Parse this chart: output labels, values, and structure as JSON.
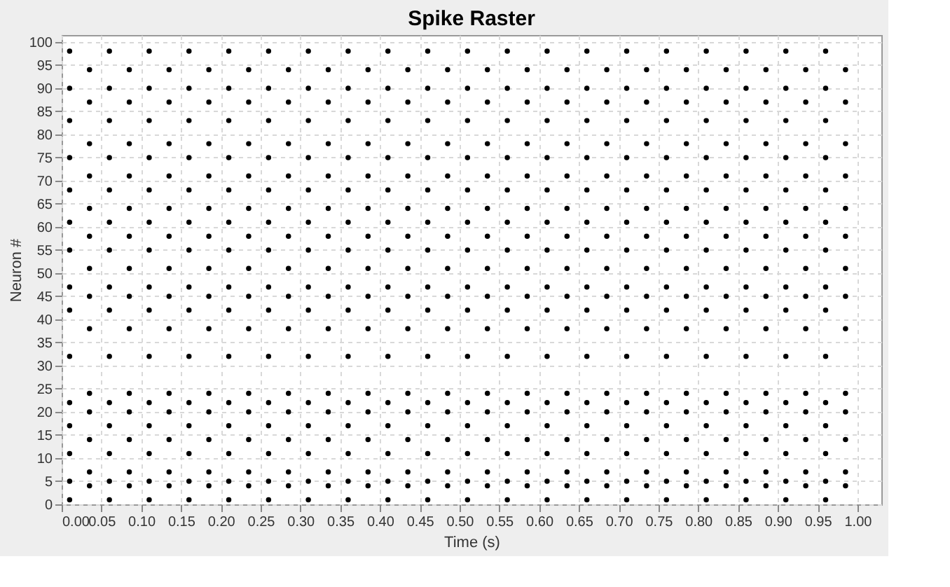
{
  "chart_data": {
    "type": "scatter",
    "title": "Spike Raster",
    "xlabel": "Time (s)",
    "ylabel": "Neuron #",
    "xlim": [
      0,
      1.03
    ],
    "ylim": [
      0,
      101.5
    ],
    "xticks": [
      {
        "value": 0,
        "label": "0.00"
      },
      {
        "value": 0.05,
        "label": "0.05"
      },
      {
        "value": 0.1,
        "label": "0.10"
      },
      {
        "value": 0.15,
        "label": "0.15"
      },
      {
        "value": 0.2,
        "label": "0.20"
      },
      {
        "value": 0.25,
        "label": "0.25"
      },
      {
        "value": 0.3,
        "label": "0.30"
      },
      {
        "value": 0.35,
        "label": "0.35"
      },
      {
        "value": 0.4,
        "label": "0.40"
      },
      {
        "value": 0.45,
        "label": "0.45"
      },
      {
        "value": 0.5,
        "label": "0.50"
      },
      {
        "value": 0.55,
        "label": "0.55"
      },
      {
        "value": 0.6,
        "label": "0.60"
      },
      {
        "value": 0.65,
        "label": "0.65"
      },
      {
        "value": 0.7,
        "label": "0.70"
      },
      {
        "value": 0.75,
        "label": "0.75"
      },
      {
        "value": 0.8,
        "label": "0.80"
      },
      {
        "value": 0.85,
        "label": "0.85"
      },
      {
        "value": 0.9,
        "label": "0.90"
      },
      {
        "value": 0.95,
        "label": "0.95"
      },
      {
        "value": 1,
        "label": "1.00"
      }
    ],
    "yticks": [
      0,
      5,
      10,
      15,
      20,
      25,
      30,
      35,
      40,
      45,
      50,
      55,
      60,
      65,
      70,
      75,
      80,
      85,
      90,
      95,
      100
    ],
    "grid": true,
    "legend": false,
    "marker": "circle",
    "series": [
      {
        "color": "#000000",
        "x": [
          0.01,
          0.06,
          0.11,
          0.16,
          0.21,
          0.26,
          0.31,
          0.36,
          0.41,
          0.46,
          0.51,
          0.56,
          0.61,
          0.66,
          0.71,
          0.76,
          0.81,
          0.86,
          0.91,
          0.96
        ],
        "values": [
          1,
          1,
          1,
          1,
          1,
          1,
          1,
          1,
          1,
          1,
          1,
          1,
          1,
          1,
          1,
          1,
          1,
          1,
          1,
          1
        ]
      },
      {
        "color": "#000000",
        "x": [
          0.035,
          0.085,
          0.135,
          0.185,
          0.235,
          0.285,
          0.335,
          0.385,
          0.435,
          0.485,
          0.535,
          0.585,
          0.635,
          0.685,
          0.735,
          0.785,
          0.835,
          0.885,
          0.935,
          0.985
        ],
        "values": [
          4,
          4,
          4,
          4,
          4,
          4,
          4,
          4,
          4,
          4,
          4,
          4,
          4,
          4,
          4,
          4,
          4,
          4,
          4,
          4
        ]
      },
      {
        "color": "#000000",
        "x": [
          0.01,
          0.06,
          0.11,
          0.16,
          0.21,
          0.26,
          0.31,
          0.36,
          0.41,
          0.46,
          0.51,
          0.56,
          0.61,
          0.66,
          0.71,
          0.76,
          0.81,
          0.86,
          0.91,
          0.96
        ],
        "values": [
          5,
          5,
          5,
          5,
          5,
          5,
          5,
          5,
          5,
          5,
          5,
          5,
          5,
          5,
          5,
          5,
          5,
          5,
          5,
          5
        ]
      },
      {
        "color": "#000000",
        "x": [
          0.035,
          0.085,
          0.135,
          0.185,
          0.235,
          0.285,
          0.335,
          0.385,
          0.435,
          0.485,
          0.535,
          0.585,
          0.635,
          0.685,
          0.735,
          0.785,
          0.835,
          0.885,
          0.935,
          0.985
        ],
        "values": [
          7,
          7,
          7,
          7,
          7,
          7,
          7,
          7,
          7,
          7,
          7,
          7,
          7,
          7,
          7,
          7,
          7,
          7,
          7,
          7
        ]
      },
      {
        "color": "#000000",
        "x": [
          0.01,
          0.06,
          0.11,
          0.16,
          0.21,
          0.26,
          0.31,
          0.36,
          0.41,
          0.46,
          0.51,
          0.56,
          0.61,
          0.66,
          0.71,
          0.76,
          0.81,
          0.86,
          0.91,
          0.96
        ],
        "values": [
          11,
          11,
          11,
          11,
          11,
          11,
          11,
          11,
          11,
          11,
          11,
          11,
          11,
          11,
          11,
          11,
          11,
          11,
          11,
          11
        ]
      },
      {
        "color": "#000000",
        "x": [
          0.035,
          0.085,
          0.135,
          0.185,
          0.235,
          0.285,
          0.335,
          0.385,
          0.435,
          0.485,
          0.535,
          0.585,
          0.635,
          0.685,
          0.735,
          0.785,
          0.835,
          0.885,
          0.935,
          0.985
        ],
        "values": [
          14,
          14,
          14,
          14,
          14,
          14,
          14,
          14,
          14,
          14,
          14,
          14,
          14,
          14,
          14,
          14,
          14,
          14,
          14,
          14
        ]
      },
      {
        "color": "#000000",
        "x": [
          0.01,
          0.06,
          0.11,
          0.16,
          0.21,
          0.26,
          0.31,
          0.36,
          0.41,
          0.46,
          0.51,
          0.56,
          0.61,
          0.66,
          0.71,
          0.76,
          0.81,
          0.86,
          0.91,
          0.96
        ],
        "values": [
          17,
          17,
          17,
          17,
          17,
          17,
          17,
          17,
          17,
          17,
          17,
          17,
          17,
          17,
          17,
          17,
          17,
          17,
          17,
          17
        ]
      },
      {
        "color": "#000000",
        "x": [
          0.035,
          0.085,
          0.135,
          0.185,
          0.235,
          0.285,
          0.335,
          0.385,
          0.435,
          0.485,
          0.535,
          0.585,
          0.635,
          0.685,
          0.735,
          0.785,
          0.835,
          0.885,
          0.935,
          0.985
        ],
        "values": [
          20,
          20,
          20,
          20,
          20,
          20,
          20,
          20,
          20,
          20,
          20,
          20,
          20,
          20,
          20,
          20,
          20,
          20,
          20,
          20
        ]
      },
      {
        "color": "#000000",
        "x": [
          0.01,
          0.06,
          0.11,
          0.16,
          0.21,
          0.26,
          0.31,
          0.36,
          0.41,
          0.46,
          0.51,
          0.56,
          0.61,
          0.66,
          0.71,
          0.76,
          0.81,
          0.86,
          0.91,
          0.96
        ],
        "values": [
          22,
          22,
          22,
          22,
          22,
          22,
          22,
          22,
          22,
          22,
          22,
          22,
          22,
          22,
          22,
          22,
          22,
          22,
          22,
          22
        ]
      },
      {
        "color": "#000000",
        "x": [
          0.035,
          0.085,
          0.135,
          0.185,
          0.235,
          0.285,
          0.335,
          0.385,
          0.435,
          0.485,
          0.535,
          0.585,
          0.635,
          0.685,
          0.735,
          0.785,
          0.835,
          0.885,
          0.935,
          0.985
        ],
        "values": [
          24,
          24,
          24,
          24,
          24,
          24,
          24,
          24,
          24,
          24,
          24,
          24,
          24,
          24,
          24,
          24,
          24,
          24,
          24,
          24
        ]
      },
      {
        "color": "#000000",
        "x": [
          0.01,
          0.06,
          0.11,
          0.16,
          0.21,
          0.26,
          0.31,
          0.36,
          0.41,
          0.46,
          0.51,
          0.56,
          0.61,
          0.66,
          0.71,
          0.76,
          0.81,
          0.86,
          0.91,
          0.96
        ],
        "values": [
          32,
          32,
          32,
          32,
          32,
          32,
          32,
          32,
          32,
          32,
          32,
          32,
          32,
          32,
          32,
          32,
          32,
          32,
          32,
          32
        ]
      },
      {
        "color": "#000000",
        "x": [
          0.035,
          0.085,
          0.135,
          0.185,
          0.235,
          0.285,
          0.335,
          0.385,
          0.435,
          0.485,
          0.535,
          0.585,
          0.635,
          0.685,
          0.735,
          0.785,
          0.835,
          0.885,
          0.935,
          0.985
        ],
        "values": [
          38,
          38,
          38,
          38,
          38,
          38,
          38,
          38,
          38,
          38,
          38,
          38,
          38,
          38,
          38,
          38,
          38,
          38,
          38,
          38
        ]
      },
      {
        "color": "#000000",
        "x": [
          0.01,
          0.06,
          0.11,
          0.16,
          0.21,
          0.26,
          0.31,
          0.36,
          0.41,
          0.46,
          0.51,
          0.56,
          0.61,
          0.66,
          0.71,
          0.76,
          0.81,
          0.86,
          0.91,
          0.96
        ],
        "values": [
          42,
          42,
          42,
          42,
          42,
          42,
          42,
          42,
          42,
          42,
          42,
          42,
          42,
          42,
          42,
          42,
          42,
          42,
          42,
          42
        ]
      },
      {
        "color": "#000000",
        "x": [
          0.035,
          0.085,
          0.135,
          0.185,
          0.235,
          0.285,
          0.335,
          0.385,
          0.435,
          0.485,
          0.535,
          0.585,
          0.635,
          0.685,
          0.735,
          0.785,
          0.835,
          0.885,
          0.935,
          0.985
        ],
        "values": [
          45,
          45,
          45,
          45,
          45,
          45,
          45,
          45,
          45,
          45,
          45,
          45,
          45,
          45,
          45,
          45,
          45,
          45,
          45,
          45
        ]
      },
      {
        "color": "#000000",
        "x": [
          0.01,
          0.06,
          0.11,
          0.16,
          0.21,
          0.26,
          0.31,
          0.36,
          0.41,
          0.46,
          0.51,
          0.56,
          0.61,
          0.66,
          0.71,
          0.76,
          0.81,
          0.86,
          0.91,
          0.96
        ],
        "values": [
          47,
          47,
          47,
          47,
          47,
          47,
          47,
          47,
          47,
          47,
          47,
          47,
          47,
          47,
          47,
          47,
          47,
          47,
          47,
          47
        ]
      },
      {
        "color": "#000000",
        "x": [
          0.035,
          0.085,
          0.135,
          0.185,
          0.235,
          0.285,
          0.335,
          0.385,
          0.435,
          0.485,
          0.535,
          0.585,
          0.635,
          0.685,
          0.735,
          0.785,
          0.835,
          0.885,
          0.935,
          0.985
        ],
        "values": [
          51,
          51,
          51,
          51,
          51,
          51,
          51,
          51,
          51,
          51,
          51,
          51,
          51,
          51,
          51,
          51,
          51,
          51,
          51,
          51
        ]
      },
      {
        "color": "#000000",
        "x": [
          0.01,
          0.06,
          0.11,
          0.16,
          0.21,
          0.26,
          0.31,
          0.36,
          0.41,
          0.46,
          0.51,
          0.56,
          0.61,
          0.66,
          0.71,
          0.76,
          0.81,
          0.86,
          0.91,
          0.96
        ],
        "values": [
          55,
          55,
          55,
          55,
          55,
          55,
          55,
          55,
          55,
          55,
          55,
          55,
          55,
          55,
          55,
          55,
          55,
          55,
          55,
          55
        ]
      },
      {
        "color": "#000000",
        "x": [
          0.035,
          0.085,
          0.135,
          0.185,
          0.235,
          0.285,
          0.335,
          0.385,
          0.435,
          0.485,
          0.535,
          0.585,
          0.635,
          0.685,
          0.735,
          0.785,
          0.835,
          0.885,
          0.935,
          0.985
        ],
        "values": [
          58,
          58,
          58,
          58,
          58,
          58,
          58,
          58,
          58,
          58,
          58,
          58,
          58,
          58,
          58,
          58,
          58,
          58,
          58,
          58
        ]
      },
      {
        "color": "#000000",
        "x": [
          0.01,
          0.06,
          0.11,
          0.16,
          0.21,
          0.26,
          0.31,
          0.36,
          0.41,
          0.46,
          0.51,
          0.56,
          0.61,
          0.66,
          0.71,
          0.76,
          0.81,
          0.86,
          0.91,
          0.96
        ],
        "values": [
          61,
          61,
          61,
          61,
          61,
          61,
          61,
          61,
          61,
          61,
          61,
          61,
          61,
          61,
          61,
          61,
          61,
          61,
          61,
          61
        ]
      },
      {
        "color": "#000000",
        "x": [
          0.035,
          0.085,
          0.135,
          0.185,
          0.235,
          0.285,
          0.335,
          0.385,
          0.435,
          0.485,
          0.535,
          0.585,
          0.635,
          0.685,
          0.735,
          0.785,
          0.835,
          0.885,
          0.935,
          0.985
        ],
        "values": [
          64,
          64,
          64,
          64,
          64,
          64,
          64,
          64,
          64,
          64,
          64,
          64,
          64,
          64,
          64,
          64,
          64,
          64,
          64,
          64
        ]
      },
      {
        "color": "#000000",
        "x": [
          0.01,
          0.06,
          0.11,
          0.16,
          0.21,
          0.26,
          0.31,
          0.36,
          0.41,
          0.46,
          0.51,
          0.56,
          0.61,
          0.66,
          0.71,
          0.76,
          0.81,
          0.86,
          0.91,
          0.96
        ],
        "values": [
          68,
          68,
          68,
          68,
          68,
          68,
          68,
          68,
          68,
          68,
          68,
          68,
          68,
          68,
          68,
          68,
          68,
          68,
          68,
          68
        ]
      },
      {
        "color": "#000000",
        "x": [
          0.035,
          0.085,
          0.135,
          0.185,
          0.235,
          0.285,
          0.335,
          0.385,
          0.435,
          0.485,
          0.535,
          0.585,
          0.635,
          0.685,
          0.735,
          0.785,
          0.835,
          0.885,
          0.935,
          0.985
        ],
        "values": [
          71,
          71,
          71,
          71,
          71,
          71,
          71,
          71,
          71,
          71,
          71,
          71,
          71,
          71,
          71,
          71,
          71,
          71,
          71,
          71
        ]
      },
      {
        "color": "#000000",
        "x": [
          0.01,
          0.06,
          0.11,
          0.16,
          0.21,
          0.26,
          0.31,
          0.36,
          0.41,
          0.46,
          0.51,
          0.56,
          0.61,
          0.66,
          0.71,
          0.76,
          0.81,
          0.86,
          0.91,
          0.96
        ],
        "values": [
          75,
          75,
          75,
          75,
          75,
          75,
          75,
          75,
          75,
          75,
          75,
          75,
          75,
          75,
          75,
          75,
          75,
          75,
          75,
          75
        ]
      },
      {
        "color": "#000000",
        "x": [
          0.035,
          0.085,
          0.135,
          0.185,
          0.235,
          0.285,
          0.335,
          0.385,
          0.435,
          0.485,
          0.535,
          0.585,
          0.635,
          0.685,
          0.735,
          0.785,
          0.835,
          0.885,
          0.935,
          0.985
        ],
        "values": [
          78,
          78,
          78,
          78,
          78,
          78,
          78,
          78,
          78,
          78,
          78,
          78,
          78,
          78,
          78,
          78,
          78,
          78,
          78,
          78
        ]
      },
      {
        "color": "#000000",
        "x": [
          0.01,
          0.06,
          0.11,
          0.16,
          0.21,
          0.26,
          0.31,
          0.36,
          0.41,
          0.46,
          0.51,
          0.56,
          0.61,
          0.66,
          0.71,
          0.76,
          0.81,
          0.86,
          0.91,
          0.96
        ],
        "values": [
          83,
          83,
          83,
          83,
          83,
          83,
          83,
          83,
          83,
          83,
          83,
          83,
          83,
          83,
          83,
          83,
          83,
          83,
          83,
          83
        ]
      },
      {
        "color": "#000000",
        "x": [
          0.035,
          0.085,
          0.135,
          0.185,
          0.235,
          0.285,
          0.335,
          0.385,
          0.435,
          0.485,
          0.535,
          0.585,
          0.635,
          0.685,
          0.735,
          0.785,
          0.835,
          0.885,
          0.935,
          0.985
        ],
        "values": [
          87,
          87,
          87,
          87,
          87,
          87,
          87,
          87,
          87,
          87,
          87,
          87,
          87,
          87,
          87,
          87,
          87,
          87,
          87,
          87
        ]
      },
      {
        "color": "#000000",
        "x": [
          0.01,
          0.06,
          0.11,
          0.16,
          0.21,
          0.26,
          0.31,
          0.36,
          0.41,
          0.46,
          0.51,
          0.56,
          0.61,
          0.66,
          0.71,
          0.76,
          0.81,
          0.86,
          0.91,
          0.96
        ],
        "values": [
          90,
          90,
          90,
          90,
          90,
          90,
          90,
          90,
          90,
          90,
          90,
          90,
          90,
          90,
          90,
          90,
          90,
          90,
          90,
          90
        ]
      },
      {
        "color": "#000000",
        "x": [
          0.035,
          0.085,
          0.135,
          0.185,
          0.235,
          0.285,
          0.335,
          0.385,
          0.435,
          0.485,
          0.535,
          0.585,
          0.635,
          0.685,
          0.735,
          0.785,
          0.835,
          0.885,
          0.935,
          0.985
        ],
        "values": [
          94,
          94,
          94,
          94,
          94,
          94,
          94,
          94,
          94,
          94,
          94,
          94,
          94,
          94,
          94,
          94,
          94,
          94,
          94,
          94
        ]
      },
      {
        "color": "#000000",
        "x": [
          0.01,
          0.06,
          0.11,
          0.16,
          0.21,
          0.26,
          0.31,
          0.36,
          0.41,
          0.46,
          0.51,
          0.56,
          0.61,
          0.66,
          0.71,
          0.76,
          0.81,
          0.86,
          0.91,
          0.96
        ],
        "values": [
          98,
          98,
          98,
          98,
          98,
          98,
          98,
          98,
          98,
          98,
          98,
          98,
          98,
          98,
          98,
          98,
          98,
          98,
          98,
          98
        ]
      }
    ]
  }
}
